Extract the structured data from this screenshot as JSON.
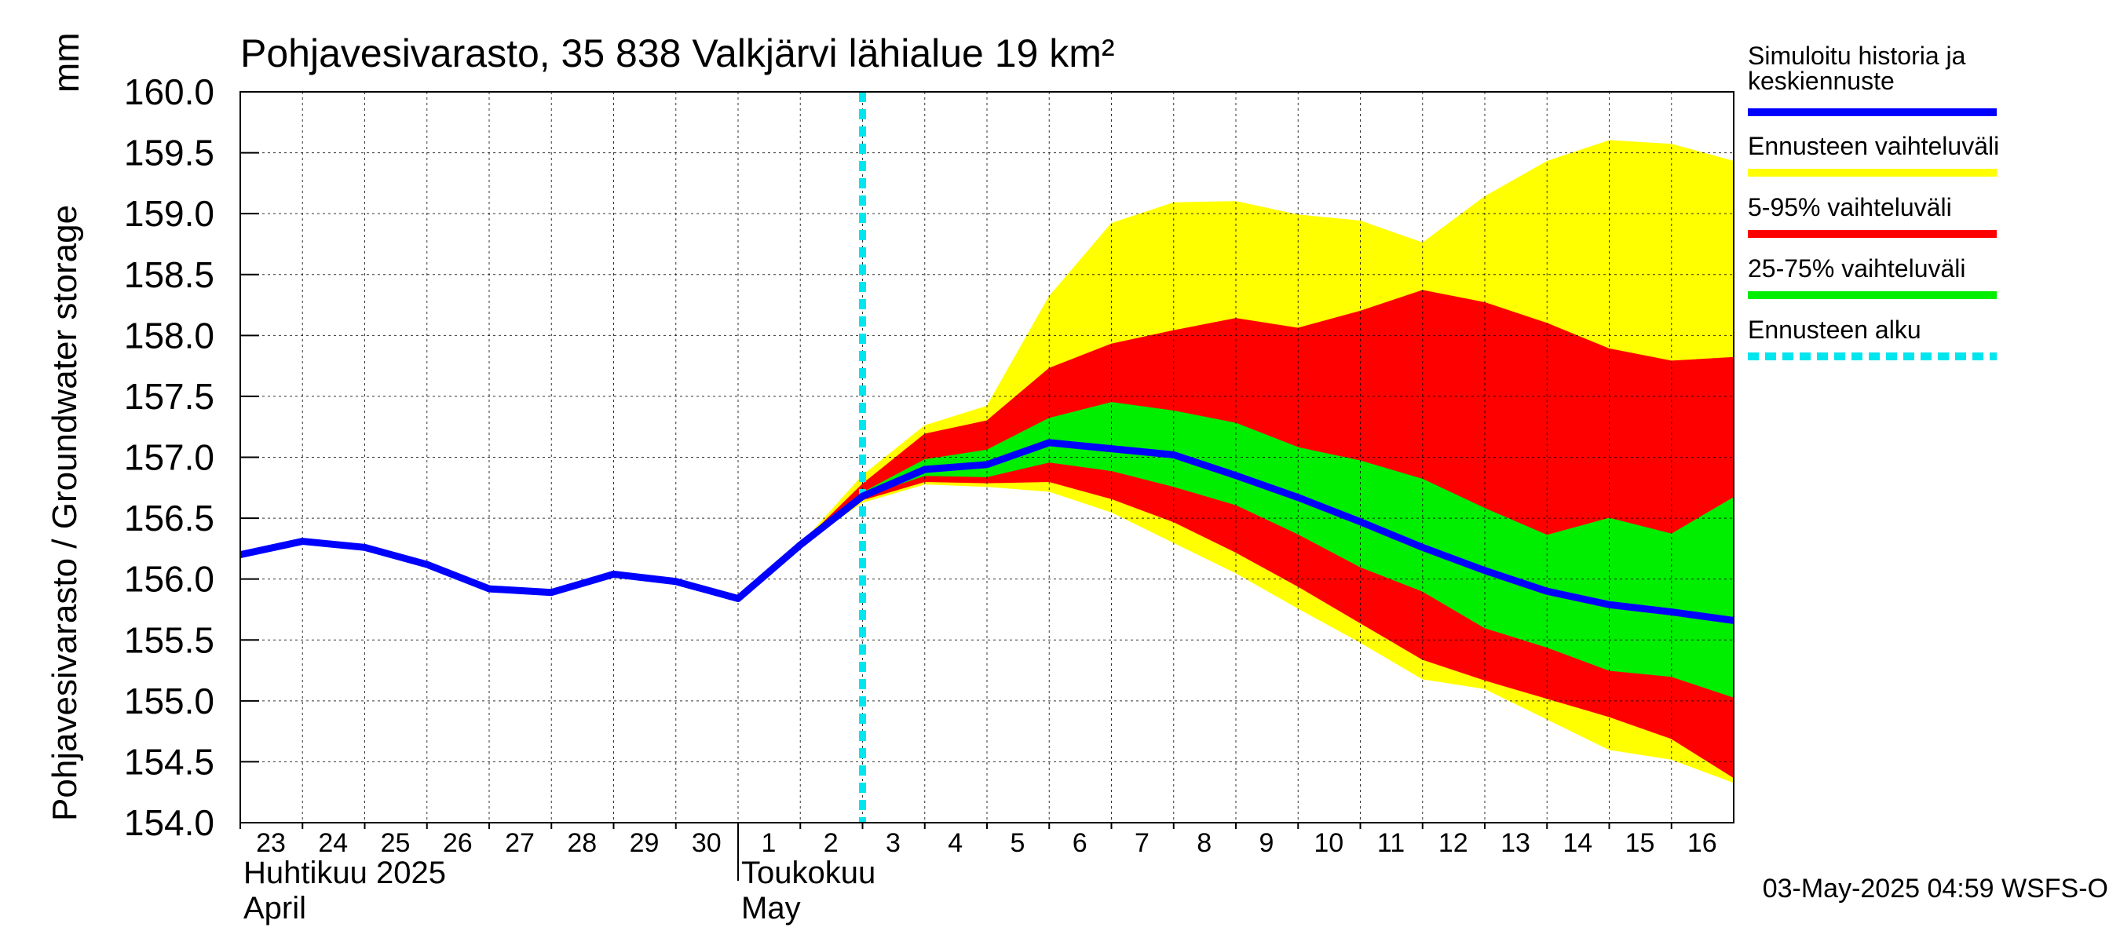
{
  "chart_data": {
    "type": "area",
    "title": "Pohjavesivarasto, 35 838 Valkjärvi lähialue 19 km²",
    "ylabel": "Pohjavesivarasto / Groundwater storage",
    "yunit": "mm",
    "ylim": [
      154.0,
      160.0
    ],
    "yticks": [
      "154.0",
      "154.5",
      "155.0",
      "155.5",
      "156.0",
      "156.5",
      "157.0",
      "157.5",
      "158.0",
      "158.5",
      "159.0",
      "159.5",
      "160.0"
    ],
    "x_start": "2025-04-23",
    "x_end": "2025-05-17",
    "x_tick_labels": [
      {
        "date": "2025-04-23",
        "label": "23"
      },
      {
        "date": "2025-04-24",
        "label": "24"
      },
      {
        "date": "2025-04-25",
        "label": "25"
      },
      {
        "date": "2025-04-26",
        "label": "26"
      },
      {
        "date": "2025-04-27",
        "label": "27"
      },
      {
        "date": "2025-04-28",
        "label": "28"
      },
      {
        "date": "2025-04-29",
        "label": "29"
      },
      {
        "date": "2025-04-30",
        "label": "30"
      },
      {
        "date": "2025-05-01",
        "label": "1"
      },
      {
        "date": "2025-05-02",
        "label": "2"
      },
      {
        "date": "2025-05-03",
        "label": "3"
      },
      {
        "date": "2025-05-04",
        "label": "4"
      },
      {
        "date": "2025-05-05",
        "label": "5"
      },
      {
        "date": "2025-05-06",
        "label": "6"
      },
      {
        "date": "2025-05-07",
        "label": "7"
      },
      {
        "date": "2025-05-08",
        "label": "8"
      },
      {
        "date": "2025-05-09",
        "label": "9"
      },
      {
        "date": "2025-05-10",
        "label": "10"
      },
      {
        "date": "2025-05-11",
        "label": "11"
      },
      {
        "date": "2025-05-12",
        "label": "12"
      },
      {
        "date": "2025-05-13",
        "label": "13"
      },
      {
        "date": "2025-05-14",
        "label": "14"
      },
      {
        "date": "2025-05-15",
        "label": "15"
      },
      {
        "date": "2025-05-16",
        "label": "16"
      }
    ],
    "month_labels": [
      {
        "date": "2025-04-23",
        "fi": "Huhtikuu  2025",
        "en": "April"
      },
      {
        "date": "2025-05-01",
        "fi": "Toukokuu",
        "en": "May"
      }
    ],
    "month_separator_date": "2025-05-01",
    "forecast_start": "2025-05-03",
    "grid": true,
    "legend_position": "right",
    "colors": {
      "history": "#0000ff",
      "full_range": "#ffff00",
      "p5_95": "#ff0000",
      "p25_75": "#00ee00",
      "forecast_start": "#00e5ee",
      "grid": "#000000"
    },
    "series": [
      {
        "name": "Simuloitu historia ja keskiennuste",
        "type": "line",
        "color": "#0000ff",
        "points": [
          [
            "2025-04-23",
            156.2
          ],
          [
            "2025-04-24",
            156.31
          ],
          [
            "2025-04-25",
            156.26
          ],
          [
            "2025-04-26",
            156.12
          ],
          [
            "2025-04-27",
            155.92
          ],
          [
            "2025-04-28",
            155.89
          ],
          [
            "2025-04-29",
            156.04
          ],
          [
            "2025-04-30",
            155.98
          ],
          [
            "2025-05-01",
            155.84
          ],
          [
            "2025-05-02",
            156.28
          ],
          [
            "2025-05-03",
            156.68
          ],
          [
            "2025-05-04",
            156.9
          ],
          [
            "2025-05-05",
            156.94
          ],
          [
            "2025-05-06",
            157.12
          ],
          [
            "2025-05-07",
            157.07
          ],
          [
            "2025-05-08",
            157.02
          ],
          [
            "2025-05-09",
            156.85
          ],
          [
            "2025-05-10",
            156.67
          ],
          [
            "2025-05-11",
            156.47
          ],
          [
            "2025-05-12",
            156.26
          ],
          [
            "2025-05-13",
            156.07
          ],
          [
            "2025-05-14",
            155.9
          ],
          [
            "2025-05-15",
            155.79
          ],
          [
            "2025-05-16",
            155.73
          ],
          [
            "2025-05-17",
            155.66
          ]
        ]
      },
      {
        "name": "Ennusteen vaihteluväli",
        "type": "band",
        "color": "#ffff00",
        "x": [
          "2025-05-02",
          "2025-05-03",
          "2025-05-04",
          "2025-05-05",
          "2025-05-06",
          "2025-05-07",
          "2025-05-08",
          "2025-05-09",
          "2025-05-10",
          "2025-05-11",
          "2025-05-12",
          "2025-05-13",
          "2025-05-14",
          "2025-05-15",
          "2025-05-16",
          "2025-05-17"
        ],
        "upper": [
          156.28,
          156.85,
          157.26,
          157.42,
          158.32,
          158.92,
          159.09,
          159.1,
          158.99,
          158.94,
          158.76,
          159.14,
          159.43,
          159.6,
          159.57,
          159.43
        ],
        "lower": [
          156.28,
          156.63,
          156.78,
          156.76,
          156.72,
          156.55,
          156.3,
          156.05,
          155.76,
          155.48,
          155.18,
          155.1,
          154.85,
          154.6,
          154.52,
          154.33
        ]
      },
      {
        "name": "5-95% vaihteluväli",
        "type": "band",
        "color": "#ff0000",
        "x": [
          "2025-05-02",
          "2025-05-03",
          "2025-05-04",
          "2025-05-05",
          "2025-05-06",
          "2025-05-07",
          "2025-05-08",
          "2025-05-09",
          "2025-05-10",
          "2025-05-11",
          "2025-05-12",
          "2025-05-13",
          "2025-05-14",
          "2025-05-15",
          "2025-05-16",
          "2025-05-17"
        ],
        "upper": [
          156.28,
          156.78,
          157.19,
          157.3,
          157.73,
          157.93,
          158.04,
          158.14,
          158.06,
          158.2,
          158.37,
          158.27,
          158.1,
          157.89,
          157.79,
          157.82
        ],
        "lower": [
          156.28,
          156.65,
          156.8,
          156.79,
          156.8,
          156.66,
          156.47,
          156.22,
          155.94,
          155.64,
          155.34,
          155.17,
          155.02,
          154.87,
          154.69,
          154.37
        ]
      },
      {
        "name": "25-75% vaihteluväli",
        "type": "band",
        "color": "#00ee00",
        "x": [
          "2025-05-02",
          "2025-05-03",
          "2025-05-04",
          "2025-05-05",
          "2025-05-06",
          "2025-05-07",
          "2025-05-08",
          "2025-05-09",
          "2025-05-10",
          "2025-05-11",
          "2025-05-12",
          "2025-05-13",
          "2025-05-14",
          "2025-05-15",
          "2025-05-16",
          "2025-05-17"
        ],
        "upper": [
          156.28,
          156.71,
          156.98,
          157.06,
          157.32,
          157.45,
          157.38,
          157.28,
          157.08,
          156.97,
          156.82,
          156.58,
          156.36,
          156.5,
          156.37,
          156.67
        ],
        "lower": [
          156.28,
          156.68,
          156.85,
          156.84,
          156.96,
          156.89,
          156.76,
          156.61,
          156.37,
          156.1,
          155.9,
          155.6,
          155.44,
          155.25,
          155.2,
          155.03
        ]
      },
      {
        "name": "Ennusteen alku",
        "type": "vline",
        "color": "#00e5ee",
        "x": "2025-05-03"
      }
    ]
  },
  "legend": [
    {
      "text": "Simuloitu historia ja keskiennuste",
      "color": "#0000ff",
      "dashed": false
    },
    {
      "text": "Ennusteen vaihteluväli",
      "color": "#ffff00",
      "dashed": false
    },
    {
      "text": "5-95% vaihteluväli",
      "color": "#ff0000",
      "dashed": false
    },
    {
      "text": "25-75% vaihteluväli",
      "color": "#00ee00",
      "dashed": false
    },
    {
      "text": "Ennusteen alku",
      "color": "#00e5ee",
      "dashed": true
    }
  ],
  "footer": "03-May-2025 04:59 WSFS-O"
}
